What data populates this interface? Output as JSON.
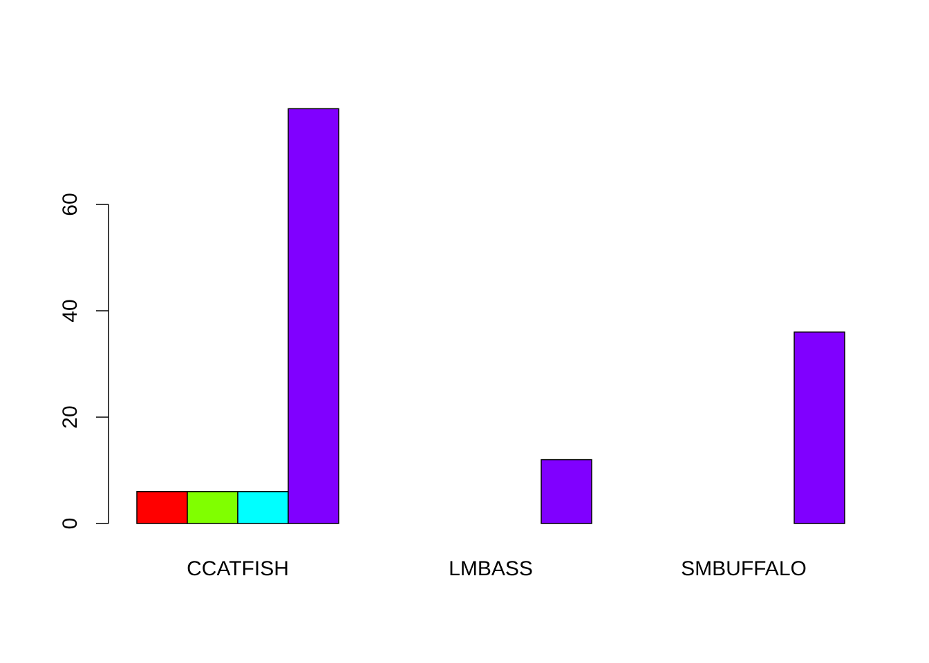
{
  "chart_data": {
    "type": "bar",
    "grouped": true,
    "categories": [
      "CCATFISH",
      "LMBASS",
      "SMBUFFALO"
    ],
    "series": [
      {
        "color": "#FF0000",
        "values": [
          6,
          0,
          0
        ]
      },
      {
        "color": "#80FF00",
        "values": [
          6,
          0,
          0
        ]
      },
      {
        "color": "#00FFFF",
        "values": [
          6,
          0,
          0
        ]
      },
      {
        "color": "#8000FF",
        "values": [
          78,
          12,
          36
        ]
      }
    ],
    "yticks": [
      "0",
      "20",
      "40",
      "60"
    ],
    "ylim": [
      0,
      78
    ],
    "title": "",
    "xlabel": "",
    "ylabel": "",
    "legend": "none",
    "grid": false
  }
}
